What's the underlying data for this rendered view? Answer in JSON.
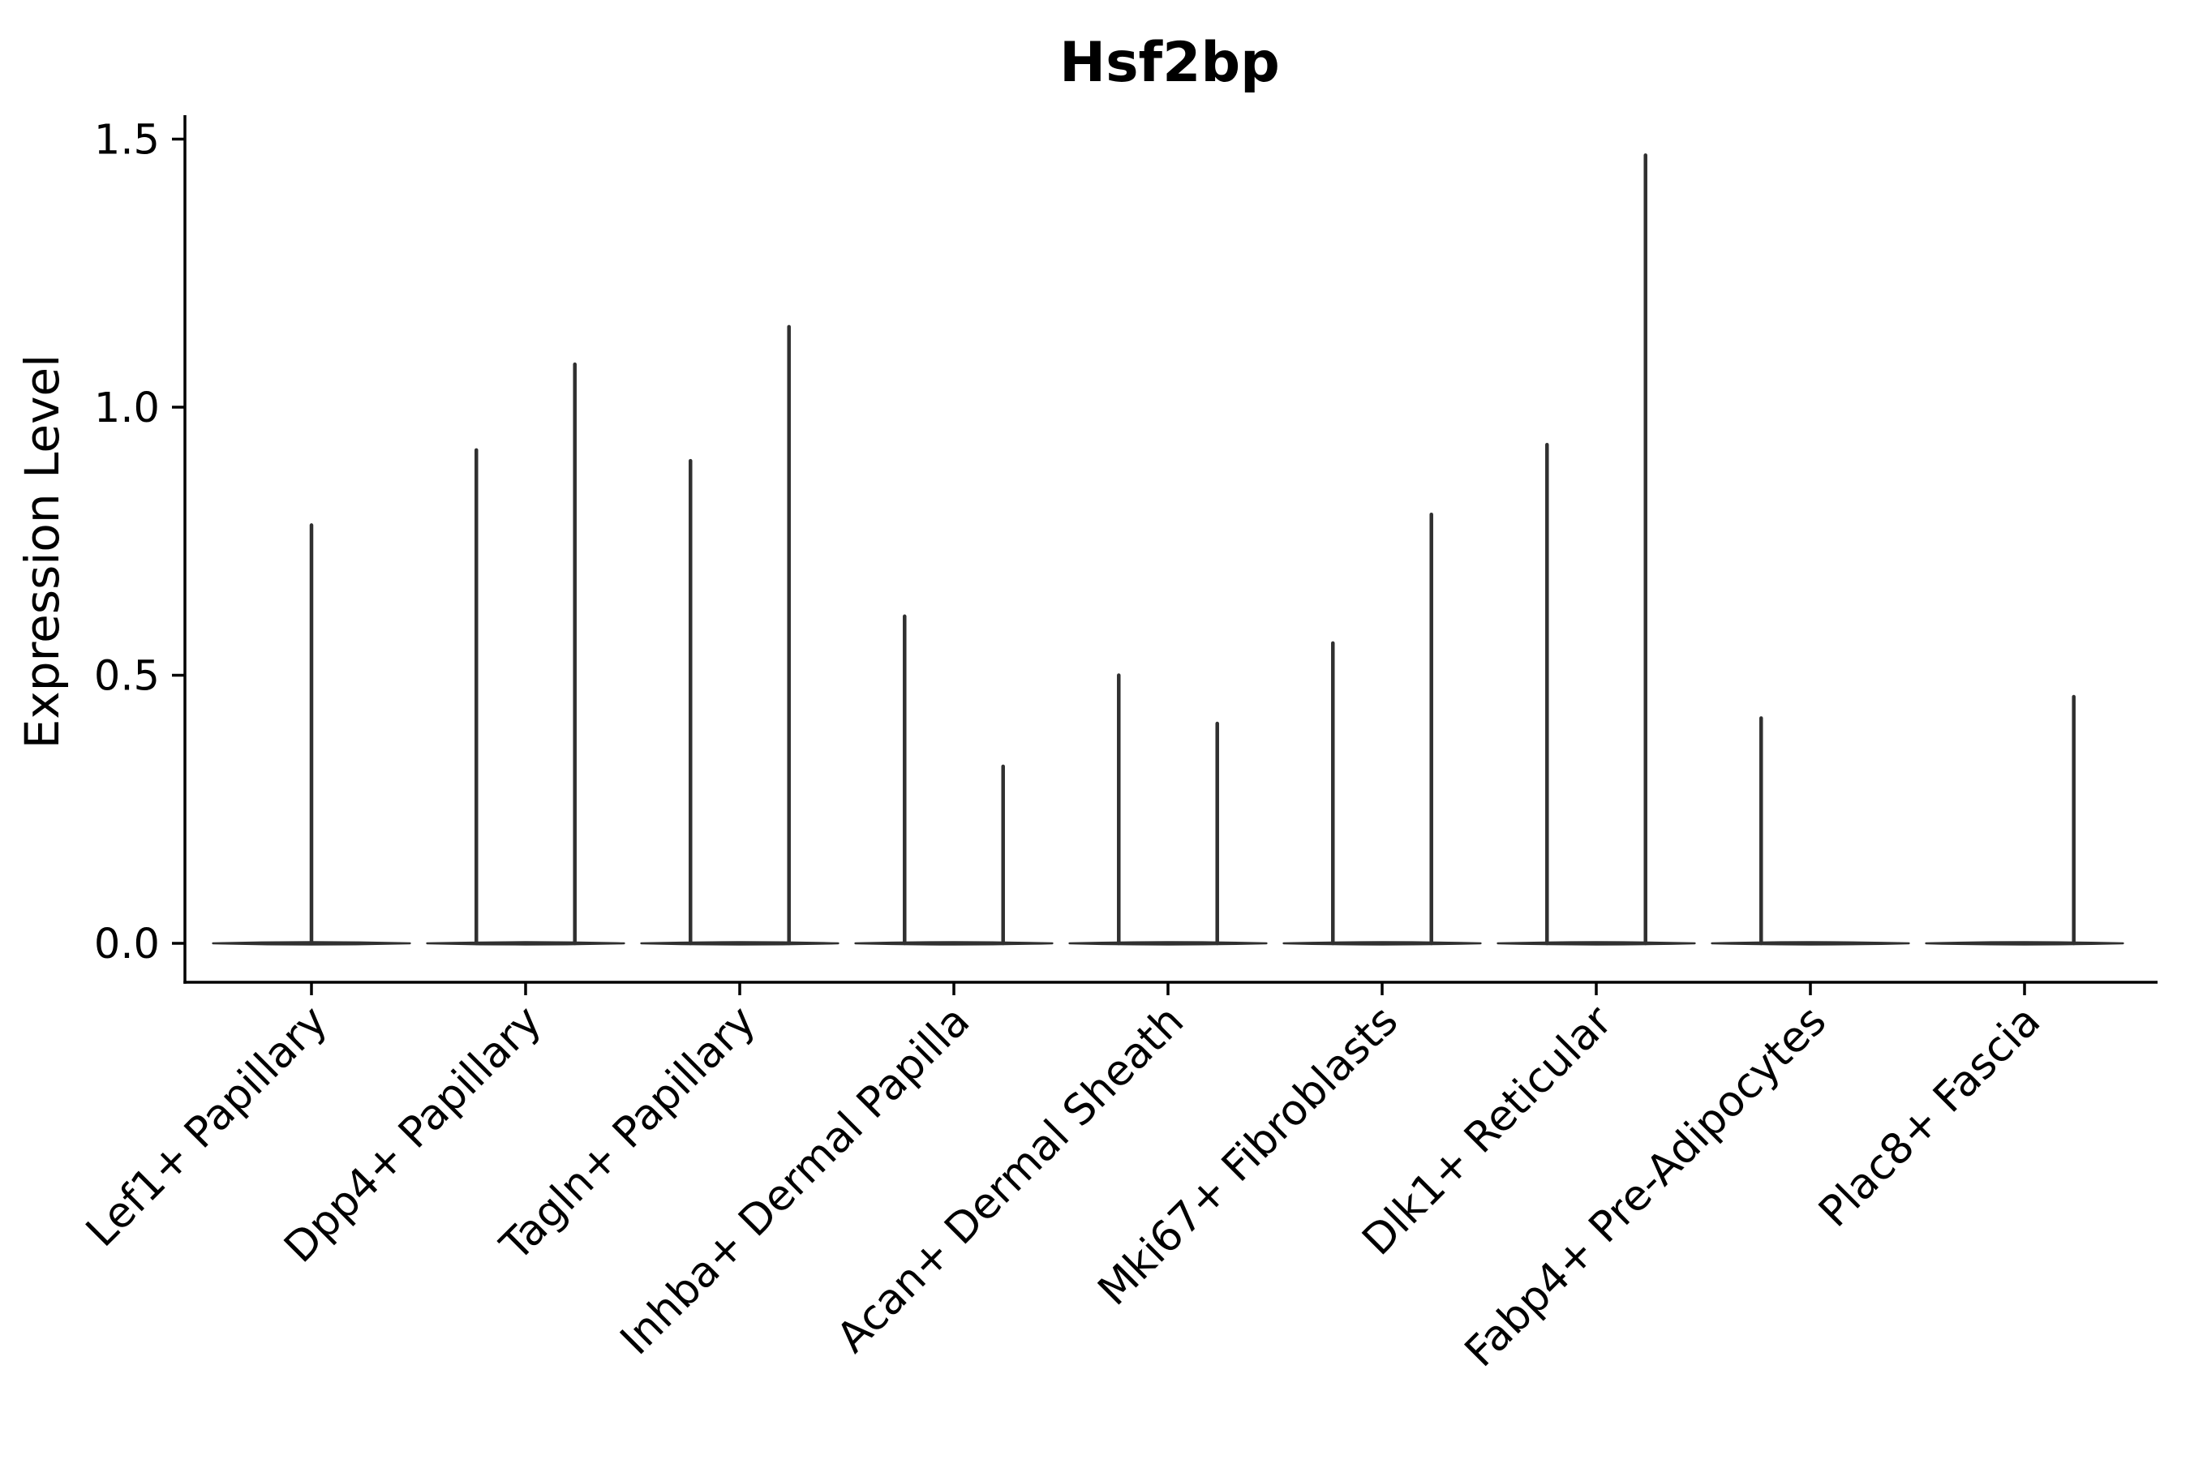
{
  "title": "Hsf2bp",
  "axes": {
    "ylabel": "Expression Level"
  },
  "colors": {
    "violin": "#303030",
    "axis": "#000000",
    "text": "#000000",
    "background": "#ffffff"
  },
  "chart_data": {
    "type": "violin",
    "title": "Hsf2bp",
    "xlabel": "",
    "ylabel": "Expression Level",
    "yticks": [
      0.0,
      0.5,
      1.0,
      1.5
    ],
    "ytick_labels": [
      "0.0",
      "0.5",
      "1.0",
      "1.5"
    ],
    "ylim": [
      -0.07,
      1.55
    ],
    "grid": false,
    "legend": "none",
    "categories": [
      "Lef1+ Papillary",
      "Dpp4+ Papillary",
      "Tagln+ Papillary",
      "Inhba+ Dermal Papilla",
      "Acan+ Dermal Sheath",
      "Mki67+ Fibroblasts",
      "Dlk1+ Reticular",
      "Fabp4+ Pre-Adipocytes",
      "Plac8+ Fascia"
    ],
    "baseline_halfwidth_frac": 0.46,
    "violins": [
      {
        "category": "Lef1+ Papillary",
        "spikes": [
          {
            "offset_frac": 0.0,
            "max": 0.78
          }
        ]
      },
      {
        "category": "Dpp4+ Papillary",
        "spikes": [
          {
            "offset_frac": -0.23,
            "max": 0.92
          },
          {
            "offset_frac": 0.23,
            "max": 1.08
          }
        ]
      },
      {
        "category": "Tagln+ Papillary",
        "spikes": [
          {
            "offset_frac": -0.23,
            "max": 0.9
          },
          {
            "offset_frac": 0.23,
            "max": 1.15
          }
        ]
      },
      {
        "category": "Inhba+ Dermal Papilla",
        "spikes": [
          {
            "offset_frac": -0.23,
            "max": 0.61
          },
          {
            "offset_frac": 0.23,
            "max": 0.33
          }
        ]
      },
      {
        "category": "Acan+ Dermal Sheath",
        "spikes": [
          {
            "offset_frac": -0.23,
            "max": 0.5
          },
          {
            "offset_frac": 0.23,
            "max": 0.41
          }
        ]
      },
      {
        "category": "Mki67+ Fibroblasts",
        "spikes": [
          {
            "offset_frac": -0.23,
            "max": 0.56
          },
          {
            "offset_frac": 0.23,
            "max": 0.8
          }
        ]
      },
      {
        "category": "Dlk1+ Reticular",
        "spikes": [
          {
            "offset_frac": -0.23,
            "max": 0.93
          },
          {
            "offset_frac": 0.23,
            "max": 1.47
          }
        ]
      },
      {
        "category": "Fabp4+ Pre-Adipocytes",
        "spikes": [
          {
            "offset_frac": -0.23,
            "max": 0.42
          }
        ]
      },
      {
        "category": "Plac8+ Fascia",
        "spikes": [
          {
            "offset_frac": 0.23,
            "max": 0.46
          }
        ]
      }
    ]
  }
}
